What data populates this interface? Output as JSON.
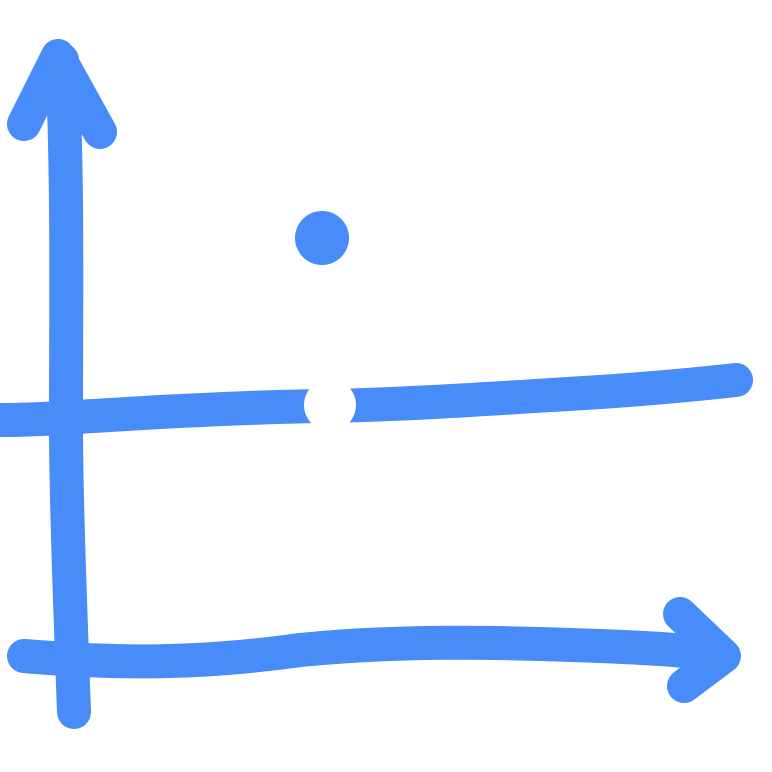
{
  "drawing": {
    "style": "hand-drawn",
    "stroke_color": "#478CF8",
    "background_color": "#FFFFFF",
    "hole_color": "#FFFFFF",
    "elements": [
      "y-axis-arrow",
      "x-axis-arrow",
      "horizontal-line",
      "filled-point",
      "open-point"
    ]
  }
}
